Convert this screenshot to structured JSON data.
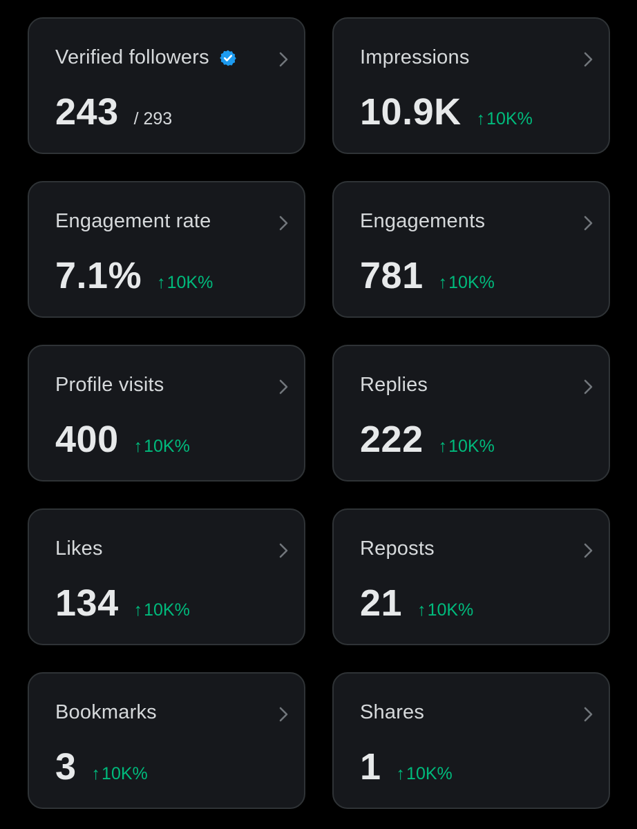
{
  "colors": {
    "background": "#000000",
    "card": "#16181c",
    "card_border": "#2f3336",
    "text_primary": "#e7e9ea",
    "text_secondary": "#d6d9db",
    "positive": "#00ba7c",
    "verified": "#1d9bf0"
  },
  "cards": [
    {
      "id": "verified-followers",
      "label": "Verified followers",
      "value": "243",
      "total": "/ 293",
      "verified_badge": true
    },
    {
      "id": "impressions",
      "label": "Impressions",
      "value": "10.9K",
      "change": "10K%"
    },
    {
      "id": "engagement-rate",
      "label": "Engagement rate",
      "value": "7.1%",
      "change": "10K%"
    },
    {
      "id": "engagements",
      "label": "Engagements",
      "value": "781",
      "change": "10K%"
    },
    {
      "id": "profile-visits",
      "label": "Profile visits",
      "value": "400",
      "change": "10K%"
    },
    {
      "id": "replies",
      "label": "Replies",
      "value": "222",
      "change": "10K%"
    },
    {
      "id": "likes",
      "label": "Likes",
      "value": "134",
      "change": "10K%"
    },
    {
      "id": "reposts",
      "label": "Reposts",
      "value": "21",
      "change": "10K%"
    },
    {
      "id": "bookmarks",
      "label": "Bookmarks",
      "value": "3",
      "change": "10K%"
    },
    {
      "id": "shares",
      "label": "Shares",
      "value": "1",
      "change": "10K%"
    }
  ],
  "icons": {
    "badge": "verified-badge-icon",
    "chevron": "chevron-right-icon",
    "arrow": "arrow-up-icon",
    "arrow_glyph": "↑"
  }
}
